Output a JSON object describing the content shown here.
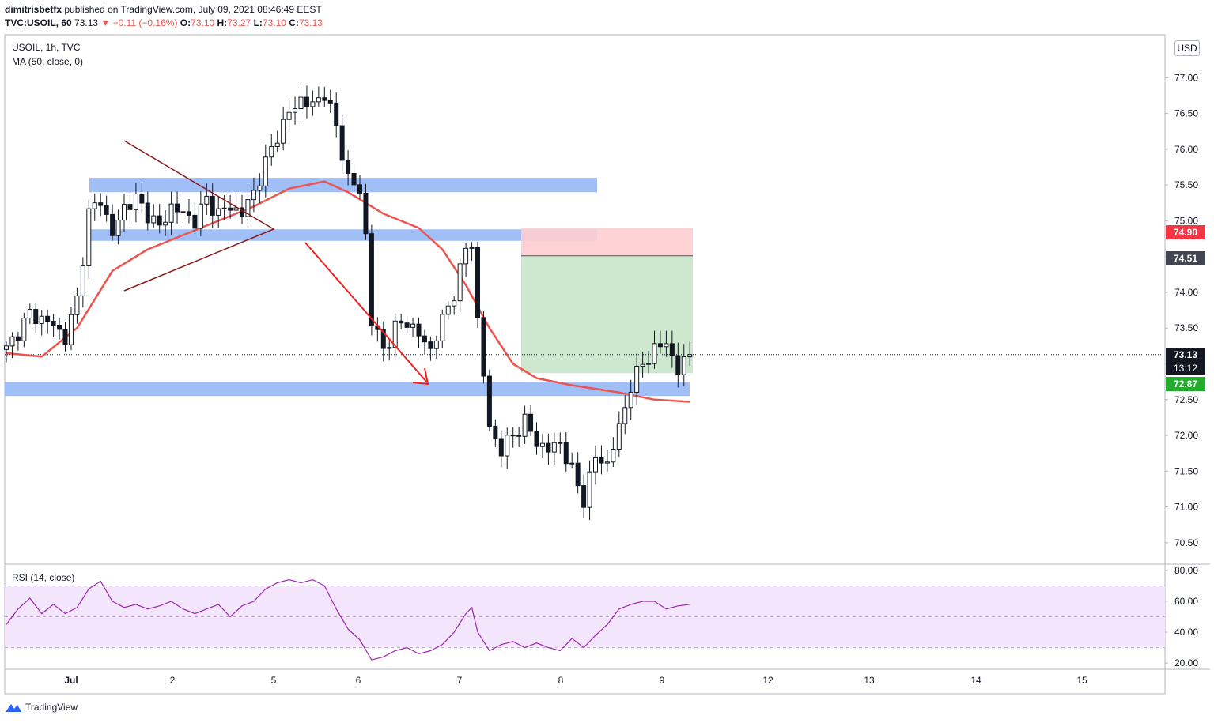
{
  "header": {
    "author": "dimitrisbetfx",
    "published": "published on TradingView.com, July 09, 2021 08:46:49 EEST",
    "symbol": "TVC:USOIL, 60",
    "last": "73.13",
    "change": "▼ −0.11 (−0.16%)",
    "o_label": "O:",
    "o": "73.10",
    "h_label": "H:",
    "h": "73.27",
    "l_label": "L:",
    "l": "73.10",
    "c_label": "C:",
    "c": "73.13"
  },
  "legend": {
    "title": "USOIL, 1h, TVC",
    "ma": "MA (50, close, 0)",
    "rsi": "RSI (14, close)"
  },
  "currency": "USD",
  "badges": {
    "stop": "74.90",
    "entry": "74.51",
    "last": "73.13",
    "countdown": "13:12",
    "target": "72.87"
  },
  "colors": {
    "up": "#131722",
    "down": "#131722",
    "ma": "#ef5350",
    "zone": "#8fb4f5",
    "stop": "#ffcdd2",
    "target": "#c8e6c9",
    "rsi_line": "#9c27b0",
    "rsi_band": "#f3e5fc",
    "arrow": "#ef2020",
    "triangle": "#8b1a1a",
    "badge_stop": "#f23645",
    "badge_entry": "#434651",
    "badge_last": "#131722",
    "badge_target": "#22ab2c"
  },
  "footer": {
    "brand": "TradingView",
    "logo_icon": "tradingview-logo-icon"
  },
  "chart_data": [
    {
      "type": "candlestick",
      "title": "USOIL, 1h, TVC",
      "x_tick_labels": [
        "Jul",
        "2",
        "5",
        "6",
        "7",
        "8",
        "9",
        "12",
        "13",
        "14",
        "15"
      ],
      "y_ticks": [
        70.5,
        71.0,
        71.5,
        72.0,
        72.5,
        73.0,
        73.5,
        74.0,
        74.5,
        75.0,
        75.5,
        76.0,
        76.5,
        77.0
      ],
      "ylim": [
        70.2,
        77.6
      ],
      "last_price": 73.13,
      "close_path": [
        [
          0,
          73.2
        ],
        [
          4,
          73.7
        ],
        [
          8,
          73.55
        ],
        [
          10,
          73.35
        ],
        [
          12,
          73.9
        ],
        [
          14,
          75.1
        ],
        [
          16,
          75.3
        ],
        [
          18,
          74.8
        ],
        [
          20,
          75.2
        ],
        [
          22,
          75.3
        ],
        [
          24,
          75.1
        ],
        [
          26,
          74.9
        ],
        [
          28,
          75.2
        ],
        [
          30,
          75.1
        ],
        [
          32,
          75.0
        ],
        [
          34,
          75.3
        ],
        [
          36,
          75.1
        ],
        [
          38,
          75.2
        ],
        [
          40,
          75.1
        ],
        [
          42,
          75.4
        ],
        [
          44,
          75.8
        ],
        [
          46,
          76.2
        ],
        [
          48,
          76.5
        ],
        [
          50,
          76.7
        ],
        [
          52,
          76.6
        ],
        [
          54,
          76.8
        ],
        [
          56,
          76.3
        ],
        [
          58,
          75.6
        ],
        [
          60,
          75.4
        ],
        [
          61,
          74.8
        ],
        [
          62,
          73.6
        ],
        [
          64,
          73.2
        ],
        [
          66,
          73.5
        ],
        [
          68,
          73.6
        ],
        [
          70,
          73.4
        ],
        [
          72,
          73.2
        ],
        [
          74,
          73.6
        ],
        [
          76,
          74.0
        ],
        [
          78,
          74.6
        ],
        [
          79,
          74.7
        ],
        [
          80,
          73.6
        ],
        [
          82,
          72.1
        ],
        [
          84,
          71.8
        ],
        [
          86,
          72.0
        ],
        [
          88,
          72.2
        ],
        [
          90,
          71.9
        ],
        [
          92,
          71.8
        ],
        [
          94,
          71.9
        ],
        [
          96,
          71.5
        ],
        [
          98,
          71.1
        ],
        [
          100,
          71.7
        ],
        [
          102,
          71.6
        ],
        [
          104,
          72.1
        ],
        [
          106,
          72.7
        ],
        [
          108,
          73.0
        ],
        [
          110,
          73.2
        ],
        [
          112,
          73.3
        ],
        [
          114,
          72.9
        ],
        [
          116,
          73.13
        ]
      ],
      "ma50": [
        [
          0,
          73.15
        ],
        [
          6,
          73.1
        ],
        [
          12,
          73.5
        ],
        [
          18,
          74.3
        ],
        [
          24,
          74.6
        ],
        [
          30,
          74.8
        ],
        [
          36,
          75.0
        ],
        [
          42,
          75.2
        ],
        [
          48,
          75.45
        ],
        [
          54,
          75.55
        ],
        [
          58,
          75.4
        ],
        [
          64,
          75.1
        ],
        [
          70,
          74.9
        ],
        [
          74,
          74.6
        ],
        [
          78,
          74.1
        ],
        [
          82,
          73.5
        ],
        [
          86,
          73.0
        ],
        [
          90,
          72.8
        ],
        [
          96,
          72.7
        ],
        [
          104,
          72.6
        ],
        [
          110,
          72.5
        ],
        [
          116,
          72.47
        ]
      ],
      "support_resistance_zones": [
        [
          75.4,
          75.6
        ],
        [
          74.72,
          74.88
        ],
        [
          72.55,
          72.75
        ]
      ],
      "trade_setup": {
        "stop": 74.9,
        "entry": 74.51,
        "target": 72.87
      }
    },
    {
      "type": "line",
      "title": "RSI (14, close)",
      "y_ticks": [
        20,
        40,
        60,
        80
      ],
      "ylim": [
        17,
        83
      ],
      "band": [
        30,
        70
      ],
      "series": [
        {
          "values": [
            [
              0,
              45
            ],
            [
              2,
              55
            ],
            [
              4,
              62
            ],
            [
              6,
              52
            ],
            [
              8,
              58
            ],
            [
              10,
              52
            ],
            [
              12,
              56
            ],
            [
              14,
              68
            ],
            [
              16,
              73
            ],
            [
              18,
              60
            ],
            [
              20,
              56
            ],
            [
              22,
              58
            ],
            [
              24,
              55
            ],
            [
              26,
              57
            ],
            [
              28,
              60
            ],
            [
              30,
              55
            ],
            [
              32,
              52
            ],
            [
              34,
              55
            ],
            [
              36,
              58
            ],
            [
              38,
              50
            ],
            [
              40,
              57
            ],
            [
              42,
              60
            ],
            [
              44,
              68
            ],
            [
              46,
              72
            ],
            [
              48,
              74
            ],
            [
              50,
              72
            ],
            [
              52,
              74
            ],
            [
              54,
              70
            ],
            [
              56,
              55
            ],
            [
              58,
              42
            ],
            [
              60,
              35
            ],
            [
              62,
              22
            ],
            [
              64,
              24
            ],
            [
              66,
              28
            ],
            [
              68,
              30
            ],
            [
              70,
              26
            ],
            [
              72,
              28
            ],
            [
              74,
              32
            ],
            [
              76,
              40
            ],
            [
              78,
              52
            ],
            [
              79,
              56
            ],
            [
              80,
              40
            ],
            [
              82,
              28
            ],
            [
              84,
              32
            ],
            [
              86,
              34
            ],
            [
              88,
              30
            ],
            [
              90,
              33
            ],
            [
              92,
              30
            ],
            [
              94,
              28
            ],
            [
              96,
              36
            ],
            [
              98,
              30
            ],
            [
              100,
              38
            ],
            [
              102,
              45
            ],
            [
              104,
              55
            ],
            [
              106,
              58
            ],
            [
              108,
              60
            ],
            [
              110,
              60
            ],
            [
              112,
              55
            ],
            [
              114,
              57
            ],
            [
              116,
              58
            ]
          ]
        }
      ]
    }
  ]
}
